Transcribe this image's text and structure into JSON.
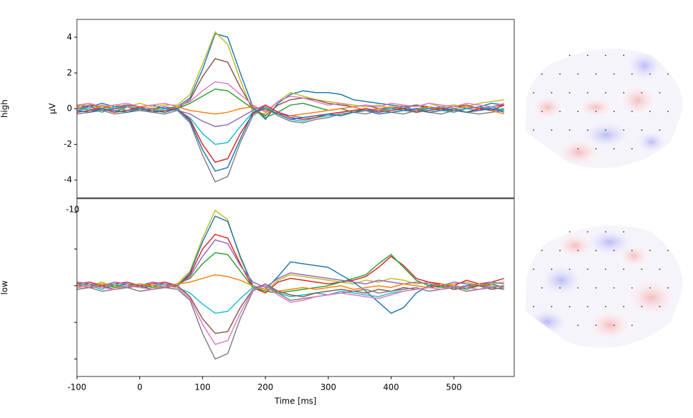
{
  "chart_data": [
    {
      "type": "line",
      "row_label": "high",
      "ylabel": "µV",
      "xlim": [
        -100,
        596
      ],
      "ylim": [
        -5,
        5
      ],
      "yticks": [
        -4,
        -2,
        0,
        2,
        4
      ],
      "ytick_labels": true,
      "x": [
        -100,
        -80,
        -60,
        -40,
        -20,
        0,
        20,
        40,
        60,
        80,
        100,
        120,
        140,
        160,
        180,
        200,
        220,
        240,
        260,
        280,
        300,
        320,
        340,
        360,
        380,
        400,
        420,
        440,
        460,
        480,
        500,
        520,
        540,
        560,
        580
      ],
      "series": [
        {
          "color": "#1f77b4",
          "values": [
            0.2,
            0.1,
            0.3,
            0.1,
            0.2,
            0.1,
            0.2,
            0.0,
            0.1,
            0.6,
            2.2,
            4.2,
            4.0,
            2.0,
            0.1,
            -0.6,
            0.3,
            0.8,
            1.0,
            0.9,
            0.9,
            0.8,
            0.5,
            0.4,
            0.3,
            0.2,
            0.1,
            0.2,
            0.0,
            0.1,
            0.2,
            0.0,
            0.1,
            0.3,
            0.2
          ]
        },
        {
          "color": "#bcbd22",
          "values": [
            0.1,
            0.3,
            0.0,
            0.2,
            0.1,
            0.3,
            0.1,
            0.2,
            0.2,
            0.8,
            2.5,
            4.3,
            3.6,
            1.6,
            -0.2,
            -0.3,
            0.4,
            0.9,
            0.7,
            0.5,
            0.4,
            0.3,
            0.2,
            0.1,
            0.2,
            0.0,
            0.2,
            0.1,
            0.3,
            0.1,
            0.2,
            0.1,
            0.3,
            0.4,
            0.5
          ]
        },
        {
          "color": "#8c564b",
          "values": [
            0.0,
            0.2,
            0.1,
            0.0,
            0.2,
            0.1,
            0.0,
            0.1,
            0.0,
            0.5,
            1.8,
            2.8,
            2.6,
            1.2,
            0.0,
            -0.4,
            0.2,
            0.5,
            0.6,
            0.5,
            0.3,
            0.2,
            0.1,
            0.2,
            0.0,
            0.1,
            0.0,
            0.2,
            0.1,
            0.0,
            0.1,
            0.2,
            0.0,
            0.1,
            0.2
          ]
        },
        {
          "color": "#e377c2",
          "values": [
            0.2,
            0.3,
            0.1,
            0.2,
            0.3,
            0.1,
            0.2,
            0.3,
            0.1,
            0.4,
            1.0,
            1.5,
            1.4,
            0.8,
            0.2,
            -0.2,
            0.4,
            0.7,
            0.6,
            0.4,
            0.2,
            0.3,
            0.1,
            0.2,
            0.1,
            0.3,
            0.2,
            0.1,
            0.3,
            0.2,
            0.1,
            0.3,
            0.2,
            0.1,
            0.3
          ]
        },
        {
          "color": "#2ca02c",
          "values": [
            -0.1,
            0.1,
            0.0,
            -0.2,
            0.1,
            0.0,
            -0.1,
            0.1,
            0.0,
            0.3,
            0.7,
            1.1,
            1.0,
            0.5,
            0.0,
            -0.5,
            -0.2,
            0.2,
            0.3,
            0.1,
            -0.1,
            0.0,
            -0.2,
            0.0,
            -0.1,
            0.1,
            0.0,
            -0.1,
            0.1,
            0.0,
            -0.2,
            0.0,
            0.1,
            -0.1,
            0.0
          ]
        },
        {
          "color": "#ff7f0e",
          "values": [
            0.1,
            -0.1,
            0.2,
            0.0,
            -0.1,
            0.1,
            0.0,
            -0.2,
            0.1,
            -0.1,
            -0.2,
            -0.3,
            -0.2,
            0.0,
            0.1,
            -0.1,
            -0.3,
            -0.4,
            -0.3,
            -0.2,
            -0.1,
            0.0,
            0.1,
            -0.1,
            0.0,
            0.1,
            -0.1,
            0.0,
            0.1,
            -0.1,
            0.0,
            0.1,
            0.0,
            -0.1,
            -0.3
          ]
        },
        {
          "color": "#9467bd",
          "values": [
            0.0,
            0.1,
            -0.1,
            0.0,
            0.1,
            -0.1,
            0.0,
            0.1,
            -0.1,
            -0.3,
            -0.7,
            -1.0,
            -0.9,
            -0.5,
            -0.1,
            0.2,
            -0.2,
            -0.4,
            -0.5,
            -0.4,
            -0.3,
            -0.2,
            -0.1,
            0.0,
            -0.1,
            0.0,
            0.1,
            -0.1,
            0.0,
            0.1,
            -0.1,
            0.0,
            0.1,
            0.0,
            -0.1
          ]
        },
        {
          "color": "#17becf",
          "values": [
            -0.1,
            0.0,
            -0.2,
            0.1,
            -0.1,
            0.0,
            -0.2,
            0.0,
            -0.1,
            -0.5,
            -1.4,
            -2.0,
            -1.9,
            -1.0,
            -0.2,
            0.1,
            -0.3,
            -0.6,
            -0.7,
            -0.5,
            -0.4,
            -0.3,
            -0.2,
            -0.1,
            -0.2,
            0.0,
            -0.1,
            -0.2,
            0.0,
            -0.1,
            -0.2,
            0.0,
            -0.1,
            0.1,
            -0.1
          ]
        },
        {
          "color": "#d62728",
          "values": [
            -0.2,
            -0.1,
            0.0,
            -0.2,
            -0.1,
            0.1,
            -0.2,
            -0.1,
            0.0,
            -0.6,
            -2.0,
            -3.0,
            -2.8,
            -1.4,
            -0.3,
            0.2,
            -0.2,
            -0.5,
            -0.6,
            -0.5,
            -0.3,
            -0.2,
            -0.1,
            0.0,
            -0.2,
            -0.1,
            0.0,
            -0.2,
            -0.1,
            0.0,
            -0.1,
            -0.2,
            0.0,
            -0.1,
            0.2
          ]
        },
        {
          "color": "#7f7f7f",
          "values": [
            -0.3,
            -0.2,
            -0.1,
            -0.3,
            -0.2,
            -0.1,
            -0.2,
            -0.3,
            -0.1,
            -0.8,
            -2.6,
            -4.1,
            -3.8,
            -1.9,
            -0.4,
            0.1,
            -0.4,
            -0.7,
            -0.8,
            -0.6,
            -0.5,
            -0.3,
            -0.2,
            -0.3,
            -0.1,
            -0.2,
            -0.3,
            -0.1,
            -0.2,
            -0.3,
            -0.1,
            -0.2,
            -0.3,
            -0.2,
            -0.1
          ]
        },
        {
          "color": "#1f77b4",
          "values": [
            -0.1,
            -0.2,
            0.0,
            -0.1,
            -0.2,
            0.0,
            -0.1,
            -0.2,
            0.0,
            -0.7,
            -2.3,
            -3.5,
            -3.3,
            -1.7,
            -0.2,
            0.0,
            -0.3,
            -0.6,
            -0.5,
            -0.4,
            -0.3,
            -0.4,
            -0.2,
            -0.1,
            -0.3,
            -0.2,
            -0.1,
            0.0,
            -0.2,
            -0.1,
            0.0,
            -0.2,
            -0.1,
            0.0,
            -0.2
          ]
        }
      ]
    },
    {
      "type": "line",
      "row_label": "low",
      "xlabel": "Time [ms]",
      "annotation": "-10",
      "xlim": [
        -100,
        596
      ],
      "ylim": [
        -4.95,
        4.75
      ],
      "yticks": [
        -4,
        -2,
        0,
        2,
        4
      ],
      "ytick_labels": false,
      "xticks": [
        -100,
        0,
        100,
        200,
        300,
        400,
        500
      ],
      "x": [
        -100,
        -80,
        -60,
        -40,
        -20,
        0,
        20,
        40,
        60,
        80,
        100,
        120,
        140,
        160,
        180,
        200,
        220,
        240,
        260,
        280,
        300,
        320,
        340,
        360,
        380,
        400,
        420,
        440,
        460,
        480,
        500,
        520,
        540,
        560,
        580
      ],
      "series": [
        {
          "color": "#bcbd22",
          "values": [
            0.1,
            0.0,
            0.2,
            -0.1,
            0.1,
            0.0,
            0.2,
            -0.1,
            0.1,
            0.8,
            2.6,
            4.1,
            3.6,
            1.5,
            0.0,
            -0.3,
            0.3,
            0.6,
            0.5,
            0.4,
            0.3,
            0.2,
            0.1,
            0.3,
            0.2,
            0.4,
            0.3,
            0.1,
            0.2,
            0.0,
            0.1,
            0.2,
            0.0,
            0.1,
            0.2
          ]
        },
        {
          "color": "#1f77b4",
          "values": [
            0.0,
            0.1,
            -0.1,
            0.0,
            0.1,
            -0.1,
            0.0,
            0.1,
            0.0,
            0.7,
            2.4,
            3.8,
            3.5,
            1.6,
            0.0,
            -0.2,
            0.5,
            1.3,
            1.2,
            1.1,
            1.0,
            0.6,
            0.2,
            -0.3,
            -0.9,
            -1.5,
            -1.2,
            -0.4,
            0.0,
            0.1,
            -0.1,
            0.0,
            0.1,
            -0.1,
            0.0
          ]
        },
        {
          "color": "#d62728",
          "values": [
            0.1,
            0.2,
            0.0,
            0.1,
            0.2,
            0.0,
            0.1,
            0.2,
            0.0,
            0.6,
            2.0,
            2.8,
            2.6,
            1.2,
            -0.1,
            -0.4,
            0.2,
            0.4,
            0.3,
            0.2,
            0.1,
            0.2,
            0.3,
            0.5,
            1.0,
            1.6,
            1.1,
            0.4,
            0.2,
            0.1,
            0.0,
            0.3,
            0.1,
            0.2,
            0.4
          ]
        },
        {
          "color": "#2ca02c",
          "values": [
            -0.1,
            0.0,
            0.1,
            -0.1,
            0.0,
            0.1,
            -0.1,
            0.0,
            0.1,
            0.4,
            1.2,
            1.8,
            1.7,
            0.8,
            -0.1,
            -0.3,
            -0.4,
            -0.3,
            -0.2,
            -0.1,
            0.0,
            0.2,
            0.4,
            0.6,
            1.2,
            1.7,
            1.0,
            0.3,
            0.0,
            -0.1,
            0.0,
            -0.2,
            0.0,
            0.1,
            -0.1
          ]
        },
        {
          "color": "#9467bd",
          "values": [
            0.2,
            0.1,
            0.0,
            0.2,
            0.1,
            0.0,
            0.2,
            0.1,
            0.0,
            0.5,
            1.6,
            2.5,
            2.3,
            1.1,
            0.2,
            -0.1,
            0.4,
            0.7,
            0.6,
            0.5,
            0.4,
            0.3,
            0.2,
            0.1,
            0.3,
            0.2,
            0.1,
            0.2,
            0.1,
            0.0,
            0.2,
            0.1,
            0.0,
            0.2,
            0.1
          ]
        },
        {
          "color": "#ff7f0e",
          "values": [
            0.0,
            -0.1,
            0.1,
            0.0,
            -0.1,
            0.1,
            0.0,
            -0.1,
            0.1,
            0.2,
            0.4,
            0.6,
            0.5,
            0.3,
            0.0,
            -0.2,
            -0.3,
            -0.2,
            -0.1,
            -0.2,
            -0.1,
            0.0,
            -0.2,
            -0.1,
            0.0,
            -0.1,
            0.1,
            0.0,
            -0.1,
            0.1,
            0.0,
            -0.1,
            0.1,
            0.0,
            -0.1
          ]
        },
        {
          "color": "#17becf",
          "values": [
            -0.1,
            0.0,
            -0.2,
            0.1,
            -0.1,
            0.0,
            -0.2,
            0.0,
            -0.1,
            -0.4,
            -1.0,
            -1.5,
            -1.4,
            -0.7,
            -0.1,
            0.0,
            -0.4,
            -0.6,
            -0.5,
            -0.4,
            -0.5,
            -0.3,
            -0.4,
            -0.5,
            -0.6,
            -0.4,
            -0.3,
            -0.2,
            -0.1,
            0.0,
            -0.2,
            -0.1,
            0.0,
            -0.1,
            -0.2
          ]
        },
        {
          "color": "#8c564b",
          "values": [
            -0.2,
            -0.1,
            0.0,
            -0.2,
            -0.1,
            0.0,
            -0.2,
            -0.1,
            0.0,
            -0.6,
            -1.8,
            -2.6,
            -2.5,
            -1.2,
            -0.2,
            0.1,
            -0.3,
            -0.5,
            -0.6,
            -0.4,
            -0.3,
            -0.2,
            -0.3,
            -0.4,
            -0.2,
            -0.3,
            -0.1,
            -0.2,
            -0.1,
            0.0,
            -0.2,
            -0.1,
            0.0,
            -0.2,
            -0.1
          ]
        },
        {
          "color": "#7f7f7f",
          "values": [
            -0.2,
            -0.1,
            -0.3,
            -0.2,
            -0.1,
            -0.3,
            -0.2,
            -0.1,
            -0.2,
            -0.8,
            -2.6,
            -4.0,
            -3.7,
            -1.8,
            -0.3,
            0.1,
            -0.4,
            -0.8,
            -0.7,
            -0.6,
            -0.5,
            -0.4,
            -0.3,
            -0.2,
            -0.4,
            -0.3,
            -0.2,
            -0.1,
            -0.3,
            -0.2,
            -0.1,
            -0.3,
            -0.2,
            -0.1,
            -0.2
          ]
        },
        {
          "color": "#e377c2",
          "values": [
            -0.1,
            0.0,
            -0.1,
            -0.2,
            0.0,
            -0.1,
            -0.2,
            0.0,
            -0.1,
            -0.7,
            -2.1,
            -3.2,
            -3.0,
            -1.5,
            -0.2,
            0.0,
            -0.5,
            -0.9,
            -0.8,
            -0.6,
            -0.5,
            -0.4,
            -0.5,
            -0.6,
            -0.7,
            -0.5,
            -0.3,
            -0.2,
            -0.1,
            -0.2,
            0.0,
            -0.1,
            -0.2,
            0.0,
            -0.1
          ]
        }
      ]
    }
  ]
}
